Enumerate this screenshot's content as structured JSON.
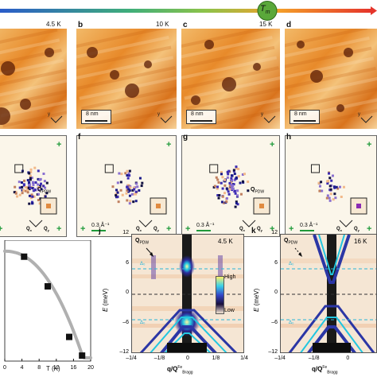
{
  "temperature_bar": {
    "tm_label": "T",
    "tm_sub": "m"
  },
  "row1": {
    "panels": [
      {
        "letter": "",
        "temp": "4.5 K",
        "scale": ""
      },
      {
        "letter": "b",
        "temp": "10 K",
        "scale": "8 nm"
      },
      {
        "letter": "c",
        "temp": "15 K",
        "scale": "8 nm"
      },
      {
        "letter": "d",
        "temp": "",
        "scale": "8 nm"
      }
    ]
  },
  "row2": {
    "panels": [
      {
        "letter": "",
        "scale": "",
        "q_label": "Q",
        "q_sub": "PDW"
      },
      {
        "letter": "f",
        "scale": "0.3 Å⁻¹",
        "q_label": "",
        "q_sub": ""
      },
      {
        "letter": "g",
        "scale": "0.3 Å⁻¹",
        "q_label": "Q",
        "q_sub": "PDW"
      },
      {
        "letter": "h",
        "scale": "0.3 Å⁻¹",
        "q_label": "",
        "q_sub": ""
      }
    ],
    "axis_x": "Q",
    "axis_x_sub": "x",
    "axis_y": "Q",
    "axis_y_sub": "y"
  },
  "panel_i": {
    "xlabel": "T (K)",
    "xticks": [
      "0",
      "4",
      "8",
      "12",
      "16",
      "20"
    ]
  },
  "panel_j": {
    "letter": "j",
    "temp": "4.5 K",
    "ylabel": "E (meV)",
    "yticks": [
      "12",
      "6",
      "0",
      "–6",
      "–12"
    ],
    "xticks": [
      "–1/4",
      "–1/8",
      "0",
      "1/8",
      "1/4"
    ],
    "xlabel": "q/Q",
    "xlabel_sup": "Fe",
    "xlabel_sub": "Bragg",
    "q_label": "Q",
    "q_sub": "PDW",
    "delta_label": "Δ₀",
    "colorbar_high": "High",
    "colorbar_low": "Low"
  },
  "panel_k": {
    "letter": "k",
    "temp": "16 K",
    "yticks": [
      "12",
      "6",
      "0",
      "–6",
      "–12"
    ],
    "xticks": [
      "–1/4",
      "–1/8",
      "0",
      "1/8"
    ],
    "xlabel": "q/Q",
    "xlabel_sup": "Fe",
    "xlabel_sub": "Bragg",
    "q_label": "Q",
    "q_sub": "PDW",
    "delta_label": "Δ₀"
  },
  "chart_data": {
    "type": "scatter",
    "title": "",
    "xlabel": "T (K)",
    "ylabel": "",
    "xlim": [
      0,
      20
    ],
    "ylim": [
      0,
      1.1
    ],
    "x": [
      4.5,
      10,
      15,
      18
    ],
    "y": [
      0.95,
      0.68,
      0.22,
      0.05
    ]
  }
}
